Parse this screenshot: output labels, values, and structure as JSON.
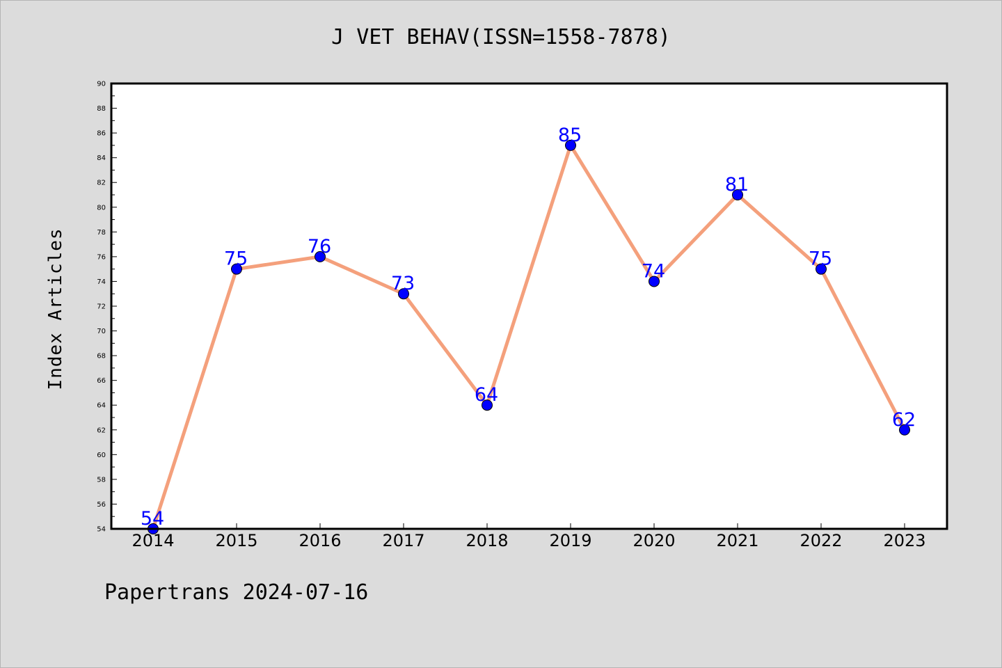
{
  "chart_data": {
    "type": "line",
    "title": "J VET BEHAV(ISSN=1558-7878)",
    "xlabel": "",
    "ylabel": "Index Articles",
    "categories": [
      "2014",
      "2015",
      "2016",
      "2017",
      "2018",
      "2019",
      "2020",
      "2021",
      "2022",
      "2023"
    ],
    "series": [
      {
        "values": [
          54,
          75,
          76,
          73,
          64,
          85,
          74,
          81,
          75,
          62
        ]
      }
    ],
    "ylim": [
      54,
      90
    ],
    "yticks": [
      "54",
      "56",
      "58",
      "60",
      "62",
      "64",
      "66",
      "68",
      "70",
      "72",
      "74",
      "76",
      "78",
      "80",
      "82",
      "84",
      "86",
      "88",
      "90"
    ],
    "grid": false,
    "data_labels": true,
    "colors": {
      "line": "#f4a07c",
      "marker": "#0000ff",
      "label": "#0000ff",
      "background": "#dcdcdc",
      "plot": "#ffffff"
    }
  },
  "footer": {
    "text": "Papertrans 2024-07-16"
  }
}
